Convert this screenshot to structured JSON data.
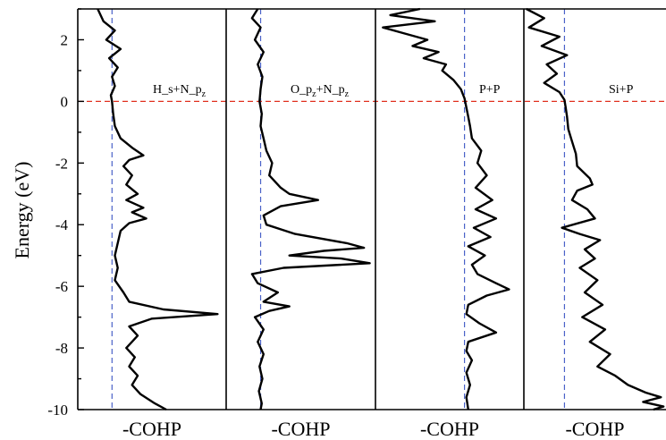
{
  "chart_data": {
    "type": "line",
    "ylabel": "Energy (eV)",
    "ylim": [
      -10,
      3
    ],
    "yticks": [
      2,
      0,
      -2,
      -4,
      -6,
      -8,
      -10
    ],
    "fermi_level": 0,
    "panels": [
      {
        "label": "H_s+N_p",
        "label_sub": "z",
        "xlabel": "-COHP",
        "xlim": [
          -0.6,
          2.0
        ],
        "series": [
          {
            "y": [
              3.0,
              2.6,
              2.3,
              2.0,
              1.7,
              1.4,
              1.1,
              0.8,
              0.5,
              0.2,
              0.0,
              -0.4,
              -0.8,
              -1.2,
              -1.5,
              -1.75,
              -1.9,
              -2.1,
              -2.4,
              -2.7,
              -3.0,
              -3.2,
              -3.45,
              -3.6,
              -3.8,
              -3.95,
              -4.2,
              -4.6,
              -5.0,
              -5.4,
              -5.8,
              -6.2,
              -6.5,
              -6.75,
              -6.9,
              -7.05,
              -7.3,
              -7.6,
              -8.0,
              -8.3,
              -8.6,
              -8.9,
              -9.2,
              -9.5,
              -9.8,
              -10.0
            ],
            "x": [
              -0.25,
              -0.15,
              0.05,
              -0.1,
              0.15,
              -0.05,
              0.1,
              0.0,
              0.05,
              -0.02,
              0.0,
              0.02,
              0.05,
              0.15,
              0.35,
              0.55,
              0.3,
              0.2,
              0.35,
              0.25,
              0.45,
              0.25,
              0.55,
              0.35,
              0.6,
              0.3,
              0.15,
              0.1,
              0.05,
              0.1,
              0.05,
              0.2,
              0.3,
              0.9,
              1.85,
              0.7,
              0.3,
              0.45,
              0.25,
              0.4,
              0.3,
              0.45,
              0.35,
              0.5,
              0.75,
              0.95
            ]
          }
        ]
      },
      {
        "label": "O_p",
        "label_mid": "+N_p",
        "label_sub": "z",
        "xlabel": "-COHP",
        "xlim": [
          -0.6,
          2.0
        ],
        "series": [
          {
            "y": [
              3.0,
              2.7,
              2.4,
              2.0,
              1.6,
              1.2,
              0.8,
              0.4,
              0.0,
              -0.4,
              -0.8,
              -1.2,
              -1.6,
              -2.0,
              -2.4,
              -2.8,
              -3.0,
              -3.2,
              -3.4,
              -3.7,
              -4.0,
              -4.3,
              -4.6,
              -4.75,
              -4.85,
              -5.0,
              -5.1,
              -5.25,
              -5.4,
              -5.6,
              -5.9,
              -6.2,
              -6.5,
              -6.65,
              -6.8,
              -7.0,
              -7.4,
              -7.8,
              -8.2,
              -8.6,
              -9.0,
              -9.4,
              -9.8,
              -10.0
            ],
            "x": [
              -0.05,
              -0.15,
              0.0,
              -0.1,
              0.05,
              -0.05,
              0.03,
              0.0,
              -0.02,
              0.02,
              0.0,
              0.05,
              0.1,
              0.2,
              0.15,
              0.35,
              0.5,
              1.0,
              0.35,
              0.05,
              0.1,
              0.6,
              1.5,
              1.8,
              1.1,
              0.5,
              1.4,
              1.9,
              0.4,
              -0.15,
              -0.05,
              0.3,
              0.05,
              0.5,
              0.15,
              -0.1,
              0.05,
              -0.05,
              0.05,
              -0.02,
              0.03,
              -0.03,
              0.02,
              0.0
            ]
          }
        ]
      },
      {
        "label": "P+P",
        "xlabel": "-COHP",
        "xlim": [
          -2.4,
          1.6
        ],
        "series": [
          {
            "y": [
              3.0,
              2.8,
              2.6,
              2.4,
              2.2,
              2.0,
              1.8,
              1.6,
              1.4,
              1.2,
              1.0,
              0.7,
              0.4,
              0.1,
              -0.2,
              -0.5,
              -0.8,
              -1.2,
              -1.6,
              -2.0,
              -2.4,
              -2.8,
              -3.2,
              -3.5,
              -3.8,
              -4.1,
              -4.4,
              -4.7,
              -5.0,
              -5.3,
              -5.6,
              -5.9,
              -6.1,
              -6.3,
              -6.6,
              -6.9,
              -7.2,
              -7.5,
              -7.8,
              -8.1,
              -8.4,
              -8.8,
              -9.2,
              -9.6,
              -10.0
            ],
            "x": [
              -1.2,
              -2.0,
              -0.8,
              -2.2,
              -1.6,
              -1.0,
              -1.4,
              -0.7,
              -1.1,
              -0.5,
              -0.6,
              -0.3,
              -0.1,
              0.0,
              0.05,
              0.1,
              0.15,
              0.2,
              0.45,
              0.35,
              0.6,
              0.3,
              0.75,
              0.3,
              0.85,
              0.25,
              0.7,
              0.1,
              0.55,
              0.2,
              0.35,
              0.85,
              1.2,
              0.6,
              0.1,
              0.05,
              0.4,
              0.85,
              0.1,
              0.05,
              0.2,
              0.05,
              0.15,
              0.05,
              0.1
            ]
          }
        ]
      },
      {
        "label": "Si+P",
        "xlabel": "-COHP",
        "xlim": [
          -1.6,
          4.0
        ],
        "series": [
          {
            "y": [
              3.0,
              2.7,
              2.4,
              2.1,
              1.8,
              1.5,
              1.2,
              0.9,
              0.6,
              0.3,
              0.05,
              -0.2,
              -0.5,
              -0.9,
              -1.3,
              -1.7,
              -2.1,
              -2.5,
              -2.7,
              -2.9,
              -3.2,
              -3.5,
              -3.8,
              -4.1,
              -4.3,
              -4.5,
              -4.8,
              -5.1,
              -5.4,
              -5.8,
              -6.2,
              -6.6,
              -7.0,
              -7.4,
              -7.8,
              -8.2,
              -8.6,
              -8.9,
              -9.2,
              -9.45,
              -9.6,
              -9.75,
              -9.9,
              -10.0
            ],
            "x": [
              -1.5,
              -0.8,
              -1.4,
              -0.2,
              -0.9,
              0.1,
              -0.7,
              -0.3,
              -0.8,
              -0.2,
              0.0,
              0.05,
              0.1,
              0.15,
              0.3,
              0.45,
              0.5,
              1.0,
              1.1,
              0.5,
              0.3,
              0.9,
              1.2,
              -0.1,
              0.6,
              1.4,
              0.8,
              1.2,
              0.6,
              1.3,
              0.8,
              1.5,
              0.7,
              1.6,
              1.0,
              1.8,
              1.3,
              2.0,
              2.5,
              3.2,
              3.8,
              3.1,
              3.9,
              3.5
            ]
          }
        ]
      }
    ]
  }
}
